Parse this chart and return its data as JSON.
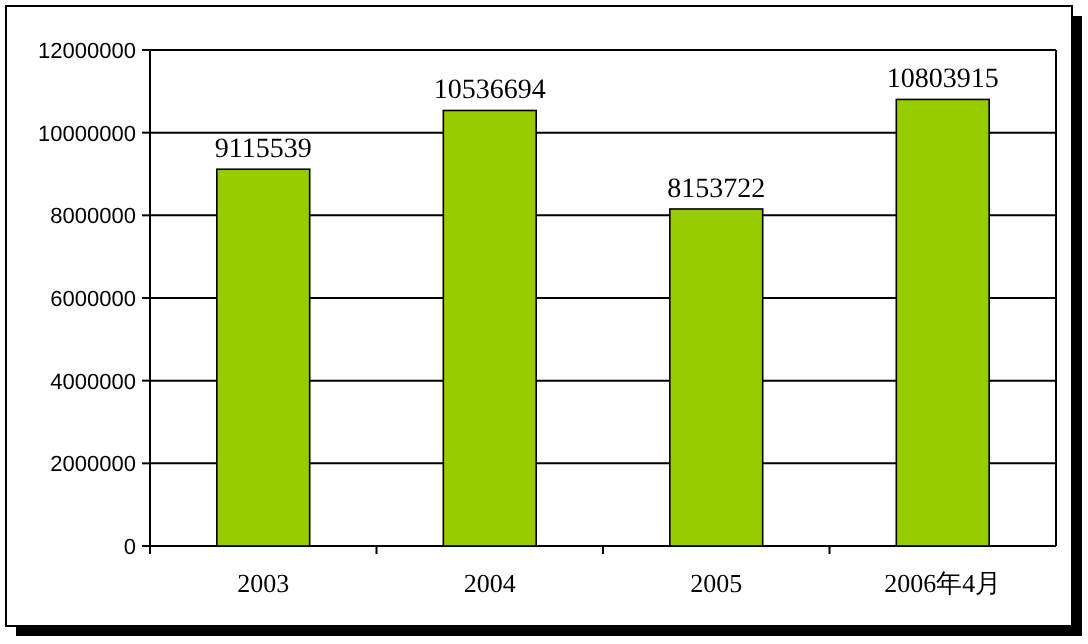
{
  "chart_data": {
    "type": "bar",
    "categories": [
      "2003",
      "2004",
      "2005",
      "2006年4月"
    ],
    "values": [
      9115539,
      10536694,
      8153722,
      10803915
    ],
    "color": "#99cc00",
    "ylim": [
      0,
      12000000
    ],
    "yticks": [
      0,
      2000000,
      4000000,
      6000000,
      8000000,
      10000000,
      12000000
    ],
    "grid": "y",
    "data_labels": true
  }
}
